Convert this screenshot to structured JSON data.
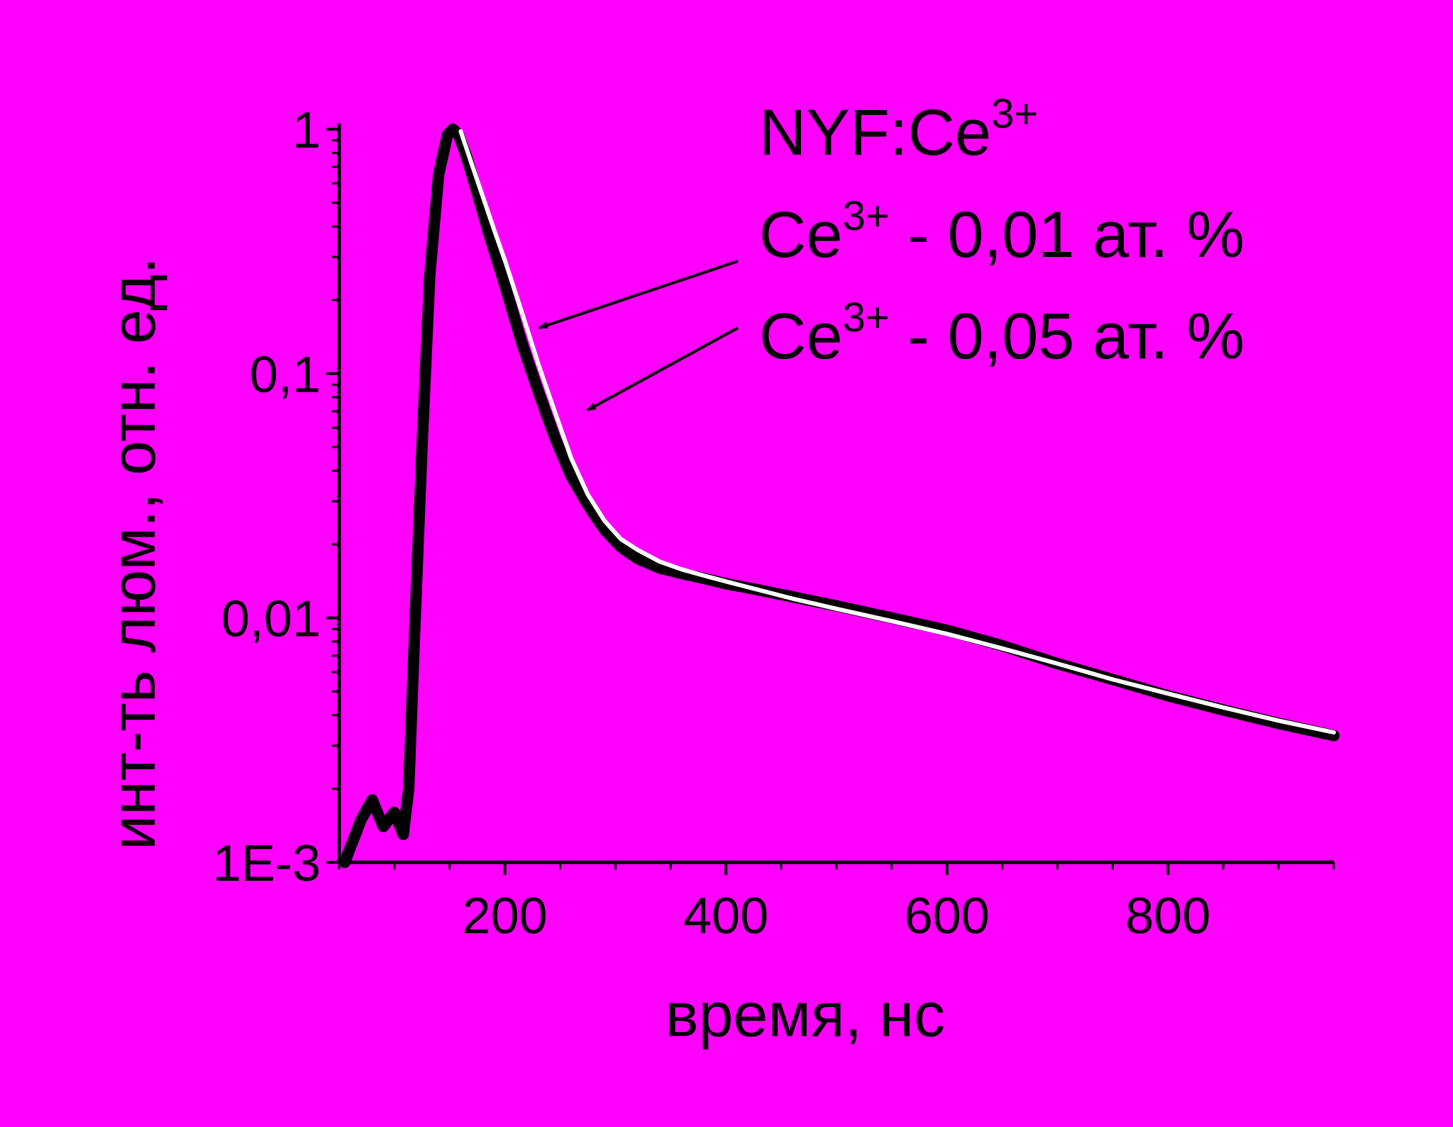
{
  "chart_data": {
    "type": "line",
    "xlabel": "время, нс",
    "ylabel": "инт-ть люм., отн. ед.",
    "xlim": [
      50,
      950
    ],
    "ylim": [
      0.001,
      1
    ],
    "yscale": "log",
    "x_ticks": [
      {
        "value": 200,
        "label": "200"
      },
      {
        "value": 400,
        "label": "400"
      },
      {
        "value": 600,
        "label": "600"
      },
      {
        "value": 800,
        "label": "800"
      }
    ],
    "y_ticks": [
      {
        "value": 1,
        "label": "1"
      },
      {
        "value": 0.1,
        "label": "0,1"
      },
      {
        "value": 0.01,
        "label": "0,01"
      },
      {
        "value": 0.001,
        "label": "1E-3"
      }
    ],
    "legend": {
      "title_main": "NYF:Ce",
      "title_sup": "3+",
      "entries": [
        {
          "prefix": "Ce",
          "sup": "3+",
          "text": " - 0,01 ат. %"
        },
        {
          "prefix": "Ce",
          "sup": "3+",
          "text": " - 0,05 ат. %"
        }
      ]
    },
    "series": [
      {
        "color": "#000000",
        "x": [
          55,
          70,
          80,
          90,
          100,
          108,
          113,
          118,
          125,
          132,
          140,
          148,
          153,
          158,
          165,
          175,
          185,
          200,
          215,
          230,
          245,
          260,
          275,
          290,
          305,
          320,
          340,
          360,
          380,
          400,
          430,
          460,
          500,
          550,
          600,
          650,
          700,
          750,
          800,
          850,
          900,
          950
        ],
        "y": [
          0.001,
          0.0015,
          0.0018,
          0.0014,
          0.0016,
          0.0013,
          0.002,
          0.008,
          0.05,
          0.25,
          0.65,
          0.95,
          1.0,
          0.95,
          0.78,
          0.55,
          0.38,
          0.23,
          0.135,
          0.085,
          0.055,
          0.038,
          0.029,
          0.023,
          0.0195,
          0.0175,
          0.016,
          0.0152,
          0.0145,
          0.0138,
          0.013,
          0.0122,
          0.0112,
          0.01,
          0.0089,
          0.0077,
          0.0065,
          0.0056,
          0.0048,
          0.0042,
          0.0037,
          0.0033
        ]
      },
      {
        "color": "#ffffff",
        "x": [
          160,
          170,
          180,
          190,
          200,
          215,
          230,
          245,
          260,
          275,
          290,
          305,
          320,
          340,
          360,
          380,
          400,
          430,
          460,
          500,
          550,
          600,
          650,
          700,
          750,
          800,
          850,
          900,
          950
        ],
        "y": [
          0.98,
          0.72,
          0.53,
          0.39,
          0.29,
          0.18,
          0.11,
          0.07,
          0.045,
          0.032,
          0.025,
          0.021,
          0.019,
          0.017,
          0.0158,
          0.0149,
          0.0141,
          0.013,
          0.012,
          0.0109,
          0.0097,
          0.0086,
          0.0075,
          0.0065,
          0.0056,
          0.0049,
          0.0043,
          0.0038,
          0.0034
        ]
      }
    ]
  }
}
